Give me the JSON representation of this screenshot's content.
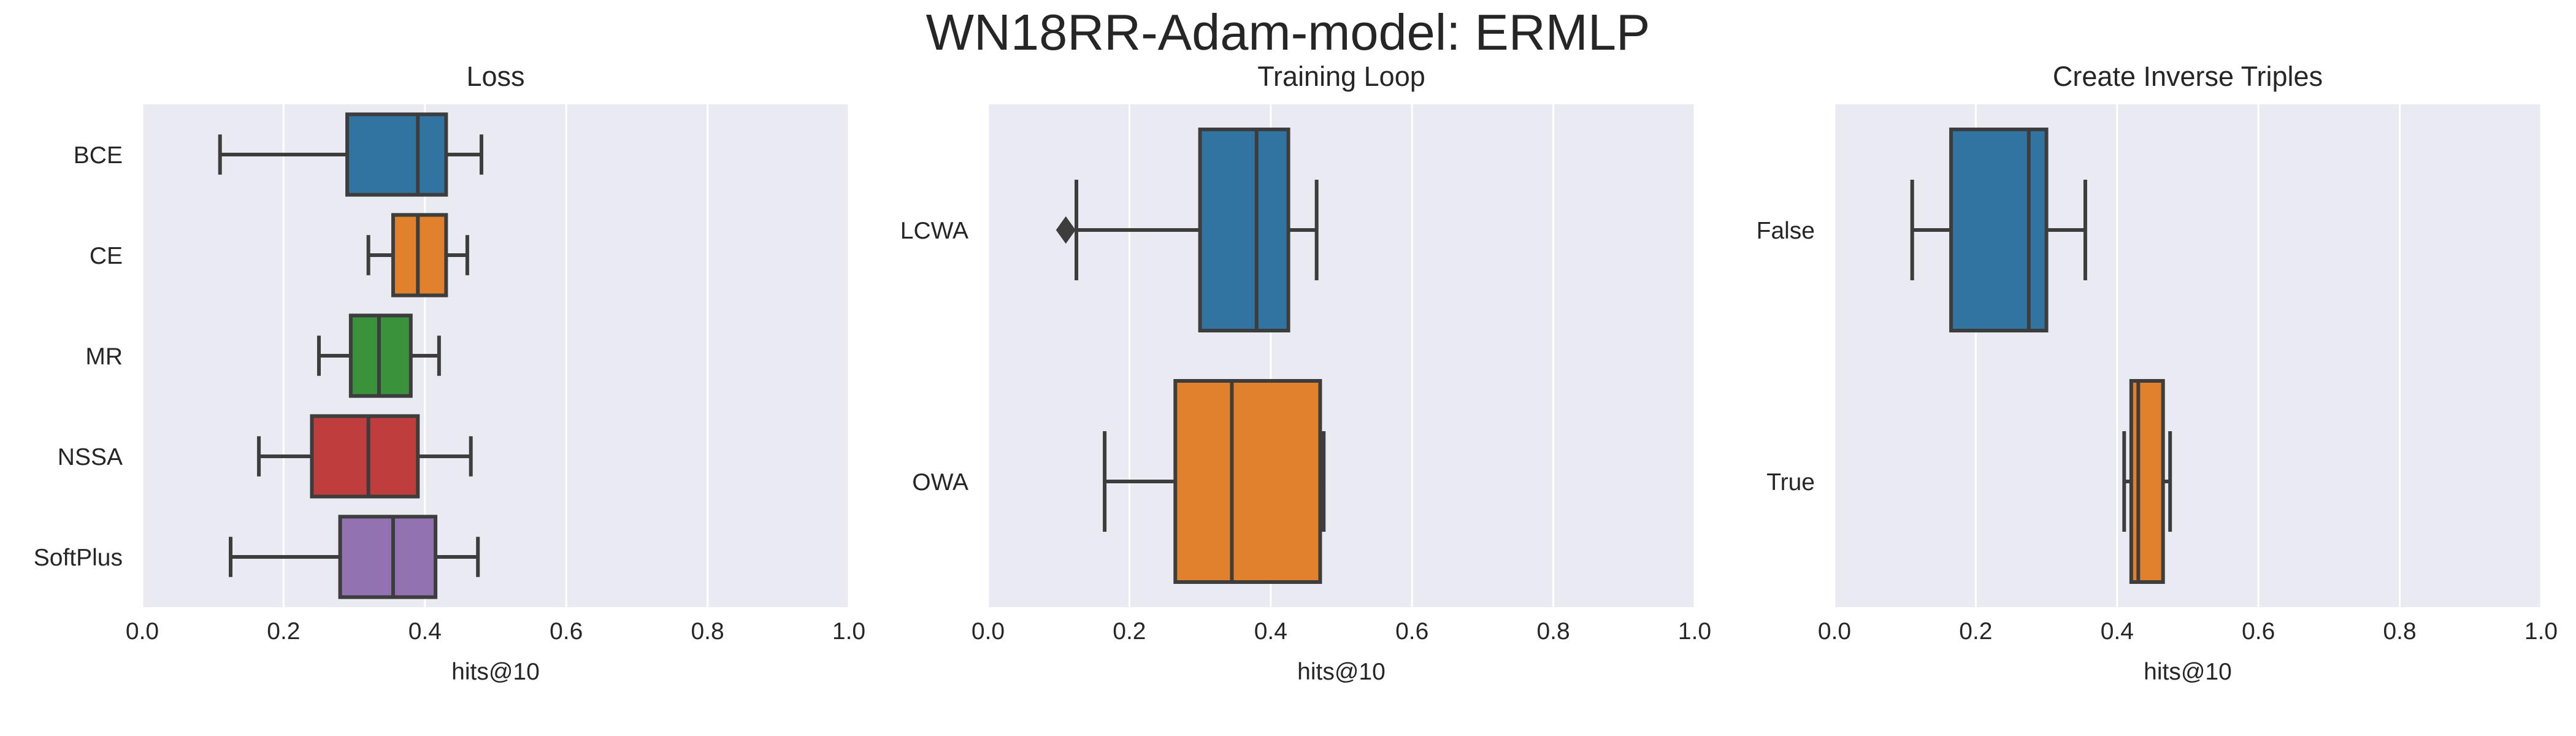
{
  "figure": {
    "suptitle": "WN18RR-Adam-model: ERMLP"
  },
  "colors": {
    "background": "#eaeaf2",
    "grid": "#ffffff",
    "line": "#3d3d3d",
    "palette": [
      "#3274a1",
      "#e1812c",
      "#3a923a",
      "#c03d3e",
      "#9372b2"
    ]
  },
  "chart_data": [
    {
      "type": "boxplot",
      "orientation": "horizontal",
      "title": "Loss",
      "xlabel": "hits@10",
      "ylabel": "",
      "xlim": [
        0.0,
        1.0
      ],
      "xticks": [
        "0.0",
        "0.2",
        "0.4",
        "0.6",
        "0.8",
        "1.0"
      ],
      "grid": true,
      "categories": [
        "BCE",
        "CE",
        "MR",
        "NSSA",
        "SoftPlus"
      ],
      "boxes": [
        {
          "category": "BCE",
          "whislo": 0.11,
          "q1": 0.29,
          "median": 0.39,
          "q3": 0.43,
          "whishi": 0.48,
          "fliers": []
        },
        {
          "category": "CE",
          "whislo": 0.32,
          "q1": 0.355,
          "median": 0.39,
          "q3": 0.43,
          "whishi": 0.46,
          "fliers": []
        },
        {
          "category": "MR",
          "whislo": 0.25,
          "q1": 0.295,
          "median": 0.335,
          "q3": 0.38,
          "whishi": 0.42,
          "fliers": []
        },
        {
          "category": "NSSA",
          "whislo": 0.165,
          "q1": 0.24,
          "median": 0.32,
          "q3": 0.39,
          "whishi": 0.465,
          "fliers": []
        },
        {
          "category": "SoftPlus",
          "whislo": 0.125,
          "q1": 0.28,
          "median": 0.355,
          "q3": 0.415,
          "whishi": 0.475,
          "fliers": []
        }
      ]
    },
    {
      "type": "boxplot",
      "orientation": "horizontal",
      "title": "Training Loop",
      "xlabel": "hits@10",
      "ylabel": "",
      "xlim": [
        0.0,
        1.0
      ],
      "xticks": [
        "0.0",
        "0.2",
        "0.4",
        "0.6",
        "0.8",
        "1.0"
      ],
      "grid": true,
      "categories": [
        "LCWA",
        "OWA"
      ],
      "boxes": [
        {
          "category": "LCWA",
          "whislo": 0.125,
          "q1": 0.3,
          "median": 0.38,
          "q3": 0.425,
          "whishi": 0.465,
          "fliers": [
            0.11
          ]
        },
        {
          "category": "OWA",
          "whislo": 0.165,
          "q1": 0.265,
          "median": 0.345,
          "q3": 0.47,
          "whishi": 0.475,
          "fliers": []
        }
      ]
    },
    {
      "type": "boxplot",
      "orientation": "horizontal",
      "title": "Create Inverse Triples",
      "xlabel": "hits@10",
      "ylabel": "",
      "xlim": [
        0.0,
        1.0
      ],
      "xticks": [
        "0.0",
        "0.2",
        "0.4",
        "0.6",
        "0.8",
        "1.0"
      ],
      "grid": true,
      "categories": [
        "False",
        "True"
      ],
      "boxes": [
        {
          "category": "False",
          "whislo": 0.11,
          "q1": 0.165,
          "median": 0.275,
          "q3": 0.3,
          "whishi": 0.355,
          "fliers": []
        },
        {
          "category": "True",
          "whislo": 0.41,
          "q1": 0.42,
          "median": 0.43,
          "q3": 0.465,
          "whishi": 0.475,
          "fliers": []
        }
      ]
    }
  ]
}
